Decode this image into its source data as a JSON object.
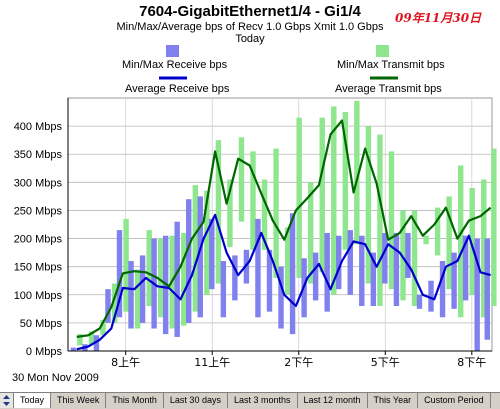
{
  "header": {
    "title": "7604-GigabitEthernet1/4 - Gi1/4",
    "subtitle": "Min/Max/Average bps of    Recv 1.0 Gbps   Xmit 1.0 Gbps",
    "period": "Today",
    "date_stamp": "09年11月30日"
  },
  "legend": {
    "minmax_receive": "Min/Max Receive bps",
    "avg_receive": "Average Receive bps",
    "minmax_transmit": "Min/Max Transmit bps",
    "avg_transmit": "Average Transmit bps"
  },
  "footer": {
    "date": "30 Mon Nov 2009"
  },
  "tabs": [
    "Today",
    "This Week",
    "This Month",
    "Last 30 days",
    "Last 3 months",
    "Last 12 month",
    "This Year",
    "Custom Period"
  ],
  "active_tab": 0,
  "colors": {
    "rx_bar": "#8080ee",
    "rx_line": "#0000cc",
    "tx_bar": "#8ee68e",
    "tx_line": "#006600"
  },
  "chart_data": {
    "type": "line",
    "y_ticks": [
      "0 Mbps",
      "50 Mbps",
      "100 Mbps",
      "150 Mbps",
      "200 Mbps",
      "250 Mbps",
      "300 Mbps",
      "350 Mbps",
      "400 Mbps"
    ],
    "ylim": [
      0,
      450
    ],
    "x_ticks": [
      "8上午",
      "11上午",
      "2下午",
      "5下午",
      "8下午"
    ],
    "x_tick_hours": [
      8,
      11,
      14,
      17,
      20
    ],
    "xlim": [
      6.0,
      20.7
    ],
    "x": [
      6.3,
      6.7,
      7.1,
      7.5,
      7.9,
      8.3,
      8.7,
      9.1,
      9.5,
      9.9,
      10.3,
      10.7,
      11.1,
      11.5,
      11.9,
      12.3,
      12.7,
      13.1,
      13.5,
      13.9,
      14.3,
      14.7,
      15.1,
      15.5,
      15.9,
      16.3,
      16.7,
      17.1,
      17.5,
      17.9,
      18.3,
      18.7,
      19.1,
      19.5,
      19.9,
      20.3,
      20.65
    ],
    "series": [
      {
        "name": "Average Receive bps",
        "values": [
          3,
          8,
          20,
          40,
          112,
          110,
          130,
          115,
          112,
          92,
          135,
          200,
          242,
          175,
          135,
          160,
          210,
          160,
          100,
          80,
          130,
          155,
          110,
          160,
          195,
          190,
          150,
          190,
          175,
          145,
          100,
          92,
          150,
          160,
          205,
          140,
          135
        ]
      },
      {
        "name": "Average Transmit bps",
        "values": [
          25,
          28,
          40,
          78,
          138,
          142,
          140,
          130,
          115,
          150,
          200,
          230,
          355,
          262,
          342,
          330,
          280,
          232,
          198,
          250,
          272,
          295,
          385,
          410,
          282,
          360,
          298,
          198,
          210,
          240,
          205,
          225,
          255,
          200,
          232,
          240,
          255
        ]
      }
    ],
    "minmax_receive": [
      [
        0,
        6
      ],
      [
        0,
        12
      ],
      [
        0,
        28
      ],
      [
        50,
        110
      ],
      [
        60,
        215
      ],
      [
        40,
        160
      ],
      [
        50,
        170
      ],
      [
        40,
        200
      ],
      [
        30,
        205
      ],
      [
        25,
        230
      ],
      [
        50,
        270
      ],
      [
        60,
        275
      ],
      [
        110,
        235
      ],
      [
        60,
        160
      ],
      [
        90,
        170
      ],
      [
        120,
        180
      ],
      [
        60,
        235
      ],
      [
        70,
        180
      ],
      [
        40,
        150
      ],
      [
        30,
        245
      ],
      [
        60,
        165
      ],
      [
        90,
        175
      ],
      [
        70,
        210
      ],
      [
        110,
        205
      ],
      [
        100,
        215
      ],
      [
        80,
        205
      ],
      [
        80,
        175
      ],
      [
        120,
        210
      ],
      [
        80,
        210
      ],
      [
        130,
        210
      ],
      [
        75,
        100
      ],
      [
        70,
        125
      ],
      [
        60,
        160
      ],
      [
        75,
        175
      ],
      [
        90,
        205
      ],
      [
        0,
        200
      ],
      [
        20,
        200
      ]
    ],
    "minmax_transmit": [
      [
        10,
        30
      ],
      [
        12,
        35
      ],
      [
        28,
        55
      ],
      [
        50,
        120
      ],
      [
        70,
        235
      ],
      [
        40,
        145
      ],
      [
        80,
        215
      ],
      [
        60,
        200
      ],
      [
        40,
        205
      ],
      [
        45,
        210
      ],
      [
        70,
        295
      ],
      [
        100,
        285
      ],
      [
        120,
        375
      ],
      [
        185,
        305
      ],
      [
        230,
        380
      ],
      [
        180,
        355
      ],
      [
        180,
        305
      ],
      [
        130,
        360
      ],
      [
        100,
        220
      ],
      [
        130,
        415
      ],
      [
        120,
        300
      ],
      [
        140,
        415
      ],
      [
        100,
        435
      ],
      [
        180,
        425
      ],
      [
        190,
        445
      ],
      [
        120,
        400
      ],
      [
        80,
        385
      ],
      [
        110,
        355
      ],
      [
        90,
        250
      ],
      [
        80,
        250
      ],
      [
        190,
        205
      ],
      [
        170,
        255
      ],
      [
        110,
        275
      ],
      [
        60,
        330
      ],
      [
        100,
        290
      ],
      [
        60,
        305
      ],
      [
        80,
        360
      ]
    ]
  }
}
